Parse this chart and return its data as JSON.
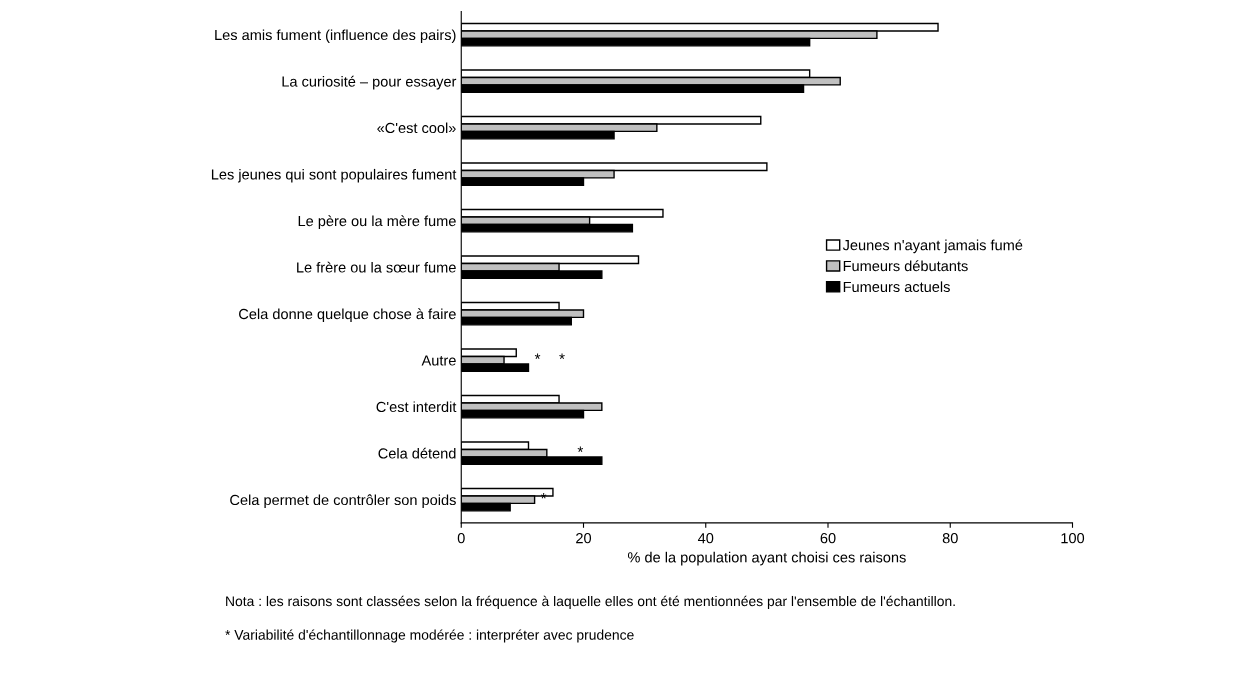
{
  "chart_data": {
    "type": "bar",
    "orientation": "horizontal",
    "xlabel": "% de la population ayant choisi ces raisons",
    "categories": [
      "Les amis fument (influence des pairs)",
      "La curiosité – pour essayer",
      "«C'est cool»",
      "Les jeunes qui sont populaires fument",
      "Le père ou la mère fume",
      "Le frère ou la sœur fume",
      "Cela donne quelque chose à faire",
      "Autre",
      "C'est interdit",
      "Cela détend",
      "Cela permet de contrôler son poids"
    ],
    "series": [
      {
        "name": "Jeunes n'ayant jamais fumé",
        "color": "#ffffff",
        "values": [
          78,
          57,
          49,
          50,
          33,
          29,
          16,
          9,
          16,
          11,
          15
        ]
      },
      {
        "name": "Fumeurs débutants",
        "color": "#c0c0c0",
        "values": [
          68,
          62,
          32,
          25,
          21,
          16,
          20,
          7,
          23,
          14,
          12
        ]
      },
      {
        "name": "Fumeurs actuels",
        "color": "#000000",
        "values": [
          57,
          56,
          25,
          20,
          28,
          23,
          18,
          11,
          20,
          23,
          8
        ]
      }
    ],
    "xlim": [
      0,
      100
    ],
    "xticks": [
      0,
      20,
      40,
      60,
      80,
      100
    ],
    "grid": false,
    "legend": "center right",
    "annotations": [
      {
        "text": "*",
        "x": 7,
        "y": "Autre"
      },
      {
        "text": "*",
        "x": 11,
        "y": "Autre"
      },
      {
        "text": "*",
        "x": 14,
        "y": "Cela détend"
      },
      {
        "text": "*",
        "x": 8,
        "y": "Cela permet de contrôler son poids"
      },
      "Nota : les raisons sont classées selon la fréquence à laquelle elles ont été mentionnées par l'ensemble de l'échantillon.",
      "* Variabilité d'échantillonnage modérée : interpréter avec prudence"
    ]
  }
}
